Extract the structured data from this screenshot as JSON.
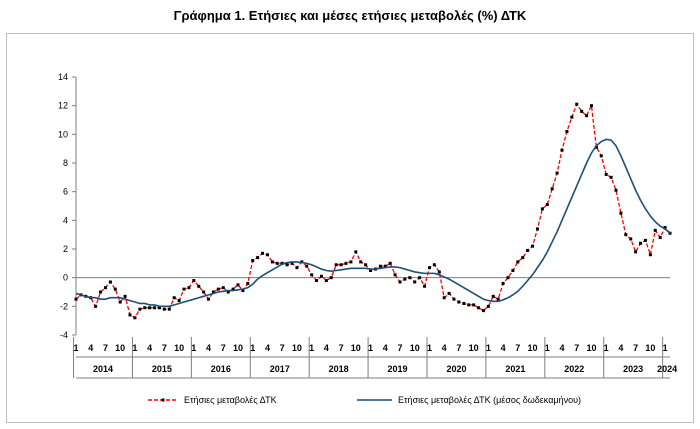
{
  "title": "Γράφημα 1. Ετήσιες και μέσες ετήσιες μεταβολές (%) ΔΤΚ",
  "chart_data": {
    "type": "line",
    "title": "Γράφημα 1. Ετήσιες και μέσες ετήσιες μεταβολές (%) ΔΤΚ",
    "ylim": [
      -4,
      14
    ],
    "yticks": [
      -4,
      -2,
      0,
      2,
      4,
      6,
      8,
      10,
      12,
      14
    ],
    "month_labels": [
      "1",
      "4",
      "7",
      "10"
    ],
    "years": [
      "2014",
      "2015",
      "2016",
      "2017",
      "2018",
      "2019",
      "2020",
      "2021",
      "2022",
      "2023",
      "2024"
    ],
    "x_start": "2014-01",
    "x_end": "2024-01",
    "grid": false,
    "legend_position": "bottom",
    "series": [
      {
        "name": "Ετήσιες μεταβολές ΔΤΚ",
        "color": "#ff0000",
        "marker_color": "#000000",
        "style": "dashed-with-markers",
        "values": [
          -1.5,
          -1.2,
          -1.3,
          -1.4,
          -2.0,
          -1.0,
          -0.7,
          -0.3,
          -0.8,
          -1.7,
          -1.3,
          -2.6,
          -2.8,
          -2.2,
          -2.1,
          -2.1,
          -2.1,
          -2.1,
          -2.2,
          -2.2,
          -1.4,
          -1.6,
          -0.8,
          -0.7,
          -0.2,
          -0.6,
          -1.0,
          -1.5,
          -1.0,
          -0.8,
          -0.7,
          -1.0,
          -0.8,
          -0.5,
          -0.9,
          -0.4,
          1.2,
          1.4,
          1.7,
          1.6,
          1.1,
          1.0,
          1.0,
          0.9,
          1.0,
          0.7,
          1.1,
          0.8,
          0.2,
          -0.2,
          0.1,
          -0.2,
          0.0,
          0.9,
          0.9,
          1.0,
          1.1,
          1.8,
          1.1,
          0.9,
          0.5,
          0.6,
          0.8,
          0.8,
          1.0,
          0.2,
          -0.3,
          -0.1,
          0.0,
          -0.3,
          0.0,
          -0.6,
          0.7,
          0.9,
          0.4,
          -1.4,
          -1.1,
          -1.5,
          -1.7,
          -1.8,
          -1.9,
          -1.9,
          -2.1,
          -2.3,
          -2.0,
          -1.3,
          -1.5,
          -0.4,
          0.0,
          0.5,
          1.1,
          1.4,
          1.9,
          2.2,
          3.4,
          4.8,
          5.1,
          6.2,
          7.3,
          8.9,
          10.2,
          11.2,
          12.1,
          11.6,
          11.3,
          12.0,
          9.1,
          8.5,
          7.2,
          7.0,
          6.1,
          4.5,
          3.0,
          2.7,
          1.8,
          2.4,
          2.6,
          1.6,
          3.3,
          2.8,
          3.5,
          3.1
        ]
      },
      {
        "name": "Ετήσιες μεταβολές ΔΤΚ (μέσος δωδεκαμήνου)",
        "color": "#1f4e79",
        "style": "solid",
        "values": [
          -1.1,
          -1.2,
          -1.3,
          -1.4,
          -1.4,
          -1.5,
          -1.5,
          -1.4,
          -1.4,
          -1.4,
          -1.5,
          -1.6,
          -1.7,
          -1.8,
          -1.8,
          -1.9,
          -1.9,
          -2.0,
          -2.0,
          -2.0,
          -1.9,
          -1.8,
          -1.7,
          -1.6,
          -1.5,
          -1.4,
          -1.3,
          -1.2,
          -1.1,
          -1.0,
          -0.95,
          -0.9,
          -0.9,
          -0.85,
          -0.8,
          -0.7,
          -0.45,
          -0.1,
          0.15,
          0.35,
          0.55,
          0.75,
          0.95,
          1.05,
          1.1,
          1.1,
          1.05,
          1.0,
          0.9,
          0.75,
          0.6,
          0.5,
          0.45,
          0.5,
          0.55,
          0.6,
          0.65,
          0.65,
          0.65,
          0.65,
          0.6,
          0.6,
          0.65,
          0.7,
          0.75,
          0.75,
          0.7,
          0.6,
          0.5,
          0.4,
          0.35,
          0.3,
          0.3,
          0.3,
          0.2,
          0.05,
          -0.1,
          -0.3,
          -0.5,
          -0.7,
          -0.9,
          -1.1,
          -1.3,
          -1.5,
          -1.6,
          -1.65,
          -1.65,
          -1.55,
          -1.4,
          -1.2,
          -0.95,
          -0.6,
          -0.2,
          0.2,
          0.7,
          1.2,
          1.8,
          2.5,
          3.2,
          4.0,
          4.8,
          5.6,
          6.4,
          7.2,
          8.0,
          8.7,
          9.2,
          9.5,
          9.65,
          9.6,
          9.2,
          8.5,
          7.7,
          6.9,
          6.1,
          5.4,
          4.8,
          4.3,
          3.9,
          3.6,
          3.4,
          3.1
        ]
      }
    ]
  }
}
